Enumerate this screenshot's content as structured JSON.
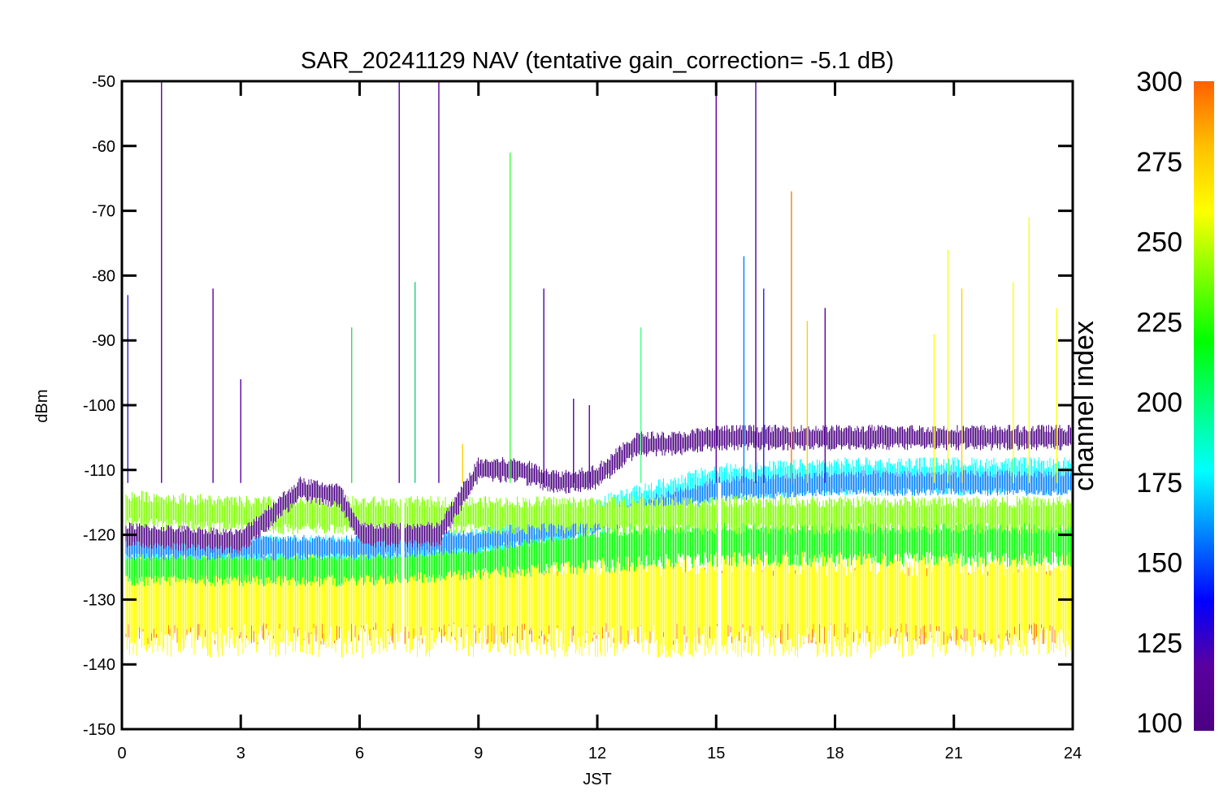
{
  "chart_data": {
    "type": "line",
    "title": "SAR_20241129 NAV (tentative gain_correction= -5.1 dB)",
    "xlabel": "JST",
    "ylabel": "dBm",
    "xlim": [
      0,
      24
    ],
    "ylim": [
      -150,
      -50
    ],
    "x_ticks": [
      "0",
      "3",
      "6",
      "9",
      "12",
      "15",
      "18",
      "21",
      "24"
    ],
    "y_ticks": [
      "-50",
      "-60",
      "-70",
      "-80",
      "-90",
      "-100",
      "-110",
      "-120",
      "-130",
      "-140",
      "-150"
    ],
    "data_gaps_x": [
      7.0,
      15.0
    ],
    "colorbar": {
      "label": "channel index",
      "range": [
        100,
        300
      ],
      "ticks": [
        "300",
        "275",
        "250",
        "225",
        "200",
        "175",
        "150",
        "125",
        "100"
      ],
      "colormap": [
        "#4b0082",
        "#5a00a0",
        "#0000ff",
        "#0080ff",
        "#00ffff",
        "#00ff80",
        "#00ff00",
        "#80ff00",
        "#ffff00",
        "#ffc000",
        "#ff8000",
        "#ff6000"
      ]
    },
    "series": [
      {
        "color": "#ff8000",
        "x": [
          0,
          3,
          6,
          9,
          12,
          15,
          18,
          21,
          24
        ],
        "y": [
          -131,
          -131,
          -131,
          -131,
          -131,
          -131,
          -131,
          -131,
          -131
        ],
        "spread": [
          6,
          6,
          6,
          6,
          6,
          6,
          6,
          6,
          6
        ]
      },
      {
        "color": "#ffff00",
        "x": [
          0,
          3,
          6,
          9,
          12,
          15,
          18,
          21,
          24
        ],
        "y": [
          -130,
          -130,
          -130,
          -130,
          -130,
          -130,
          -130,
          -130,
          -130
        ],
        "spread": [
          9,
          9,
          9,
          9,
          9,
          9,
          9,
          9,
          9
        ]
      },
      {
        "color": "#00ff00",
        "x": [
          0,
          3,
          6,
          9,
          12,
          15,
          18,
          21,
          24
        ],
        "y": [
          -125,
          -125,
          -125,
          -124,
          -122,
          -121,
          -121,
          -121,
          -121
        ],
        "spread": [
          3,
          3,
          3,
          3,
          4,
          4,
          4,
          4,
          4
        ]
      },
      {
        "color": "#00ffff",
        "x": [
          0,
          3,
          6,
          9,
          12,
          15,
          18,
          21,
          24
        ],
        "y": [
          -122,
          -122,
          -122,
          -121,
          -117,
          -112,
          -111,
          -111,
          -111
        ],
        "spread": [
          2,
          2,
          2,
          2,
          3,
          3,
          3,
          3,
          3
        ]
      },
      {
        "color": "#0080ff",
        "x": [
          0,
          3,
          6,
          9,
          12,
          15,
          18,
          21,
          24
        ],
        "y": [
          -122,
          -122,
          -122,
          -121,
          -118,
          -113,
          -112,
          -112,
          -112
        ],
        "spread": [
          2,
          2,
          2,
          2,
          2,
          2,
          2,
          2,
          2
        ]
      },
      {
        "color": "#80ff00",
        "x": [
          0,
          3,
          6,
          9,
          12,
          15,
          18,
          21,
          24
        ],
        "y": [
          -116,
          -117,
          -117,
          -117,
          -117,
          -117,
          -117,
          -117,
          -117
        ],
        "spread": [
          3,
          3,
          3,
          3,
          3,
          3,
          3,
          3,
          3
        ]
      },
      {
        "color": "#4b0082",
        "x": [
          0,
          3,
          4.5,
          5.5,
          6,
          7,
          8,
          9,
          10,
          11,
          12,
          13,
          14,
          15,
          18,
          21,
          24
        ],
        "y": [
          -120,
          -121,
          -113,
          -114,
          -120,
          -120,
          -120,
          -110,
          -110,
          -112,
          -111,
          -106,
          -106,
          -105,
          -105,
          -105,
          -105
        ],
        "spread": [
          2,
          2,
          2,
          2,
          2,
          2,
          2,
          2,
          2,
          2,
          2,
          2,
          2,
          2,
          2,
          2,
          2
        ]
      }
    ],
    "spikes": [
      {
        "x": 0.15,
        "y": -83,
        "color": "#3020c0"
      },
      {
        "x": 1.0,
        "y": -50,
        "color": "#5a00a0"
      },
      {
        "x": 2.3,
        "y": -82,
        "color": "#5a00a0"
      },
      {
        "x": 3.0,
        "y": -96,
        "color": "#5a00a0"
      },
      {
        "x": 5.8,
        "y": -88,
        "color": "#40d060"
      },
      {
        "x": 7.0,
        "y": -50,
        "color": "#5a00a0"
      },
      {
        "x": 7.4,
        "y": -81,
        "color": "#20d080"
      },
      {
        "x": 8.0,
        "y": -50,
        "color": "#5a00a0"
      },
      {
        "x": 8.6,
        "y": -106,
        "color": "#ffd000"
      },
      {
        "x": 9.8,
        "y": -61,
        "color": "#40ff40"
      },
      {
        "x": 10.65,
        "y": -82,
        "color": "#5a00a0"
      },
      {
        "x": 11.4,
        "y": -99,
        "color": "#5a00a0"
      },
      {
        "x": 11.8,
        "y": -100,
        "color": "#5a00a0"
      },
      {
        "x": 13.1,
        "y": -88,
        "color": "#40ff80"
      },
      {
        "x": 15.0,
        "y": -50,
        "color": "#5a00a0"
      },
      {
        "x": 15.7,
        "y": -77,
        "color": "#0080ff"
      },
      {
        "x": 16.0,
        "y": -50,
        "color": "#5a00a0"
      },
      {
        "x": 16.2,
        "y": -82,
        "color": "#2020ff"
      },
      {
        "x": 16.9,
        "y": -67,
        "color": "#ff8000"
      },
      {
        "x": 17.3,
        "y": -87,
        "color": "#ffd000"
      },
      {
        "x": 17.75,
        "y": -85,
        "color": "#5a00a0"
      },
      {
        "x": 20.5,
        "y": -89,
        "color": "#ffff00"
      },
      {
        "x": 20.85,
        "y": -76,
        "color": "#ffff00"
      },
      {
        "x": 21.2,
        "y": -82,
        "color": "#ffd000"
      },
      {
        "x": 22.5,
        "y": -81,
        "color": "#ffff00"
      },
      {
        "x": 22.9,
        "y": -71,
        "color": "#ffff00"
      },
      {
        "x": 23.6,
        "y": -85,
        "color": "#ffff00"
      }
    ]
  }
}
